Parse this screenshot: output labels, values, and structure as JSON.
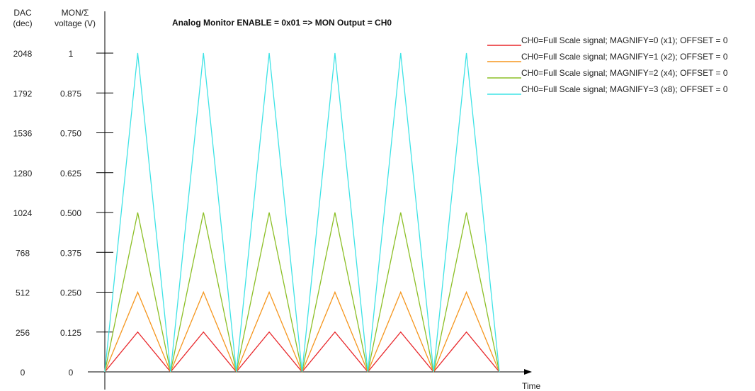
{
  "chart_data": {
    "type": "line",
    "title": "Analog Monitor ENABLE = 0x01 => MON Output = CH0",
    "left_axis_header": [
      "DAC",
      "(dec)"
    ],
    "right_axis_header": [
      "MON/Σ",
      "voltage (V)"
    ],
    "xlabel": "Time",
    "ylim": [
      0,
      1
    ],
    "y_ticks": [
      {
        "dac": "0",
        "volt": "0",
        "value": 0
      },
      {
        "dac": "256",
        "volt": "0.125",
        "value": 0.125
      },
      {
        "dac": "512",
        "volt": "0.250",
        "value": 0.25
      },
      {
        "dac": "768",
        "volt": "0.375",
        "value": 0.375
      },
      {
        "dac": "1024",
        "volt": "0.500",
        "value": 0.5
      },
      {
        "dac": "1280",
        "volt": "0.625",
        "value": 0.625
      },
      {
        "dac": "1536",
        "volt": "0.750",
        "value": 0.75
      },
      {
        "dac": "1792",
        "volt": "0.875",
        "value": 0.875
      },
      {
        "dac": "2048",
        "volt": "1",
        "value": 1
      }
    ],
    "periods": 6,
    "legend_position": "top-right",
    "series": [
      {
        "name": "CH0=Full Scale signal; MAGNIFY=0 (x1); OFFSET = 0",
        "peak": 0.125,
        "color": "#e8262a"
      },
      {
        "name": "CH0=Full Scale signal; MAGNIFY=1 (x2); OFFSET = 0",
        "peak": 0.25,
        "color": "#f5961e"
      },
      {
        "name": "CH0=Full Scale signal; MAGNIFY=2 (x4); OFFSET = 0",
        "peak": 0.5,
        "color": "#8cbf26"
      },
      {
        "name": "CH0=Full Scale signal; MAGNIFY=3 (x8); OFFSET = 0",
        "peak": 1,
        "color": "#3fe3e6"
      }
    ]
  }
}
